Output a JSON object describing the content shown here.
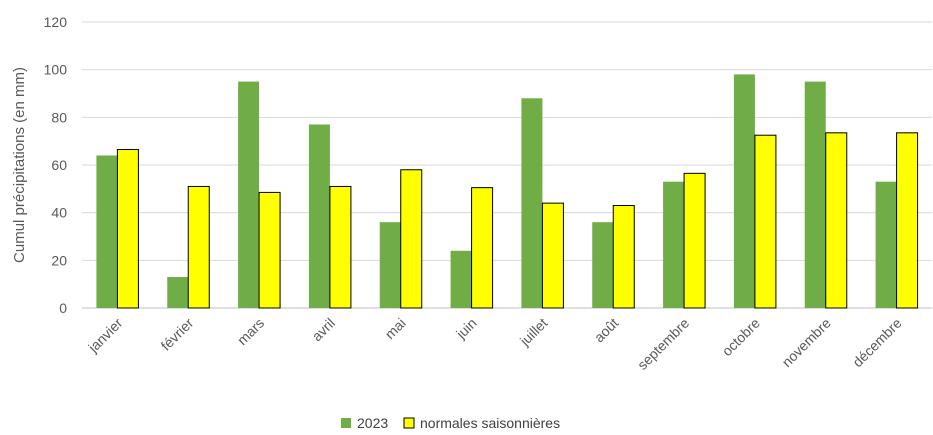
{
  "chart_data": {
    "type": "bar",
    "title": "",
    "xlabel": "",
    "ylabel": "Cumul précipitations (en mm)",
    "ylim": [
      0,
      120
    ],
    "yticks": [
      0,
      20,
      40,
      60,
      80,
      100,
      120
    ],
    "grid": true,
    "legend": "bottom",
    "categories": [
      "janvier",
      "février",
      "mars",
      "avril",
      "mai",
      "juin",
      "juillet",
      "août",
      "septembre",
      "octobre",
      "novembre",
      "décembre"
    ],
    "series": [
      {
        "name": "2023",
        "color": "#70ad47",
        "values": [
          64,
          13,
          95,
          77,
          36,
          24,
          88,
          36,
          53,
          98,
          95,
          53
        ]
      },
      {
        "name": "normales saisonnières",
        "color": "#ffff00",
        "values": [
          66.5,
          51,
          48.5,
          51,
          58,
          50.5,
          44,
          43,
          56.5,
          72.5,
          73.5,
          73.5
        ]
      }
    ]
  }
}
